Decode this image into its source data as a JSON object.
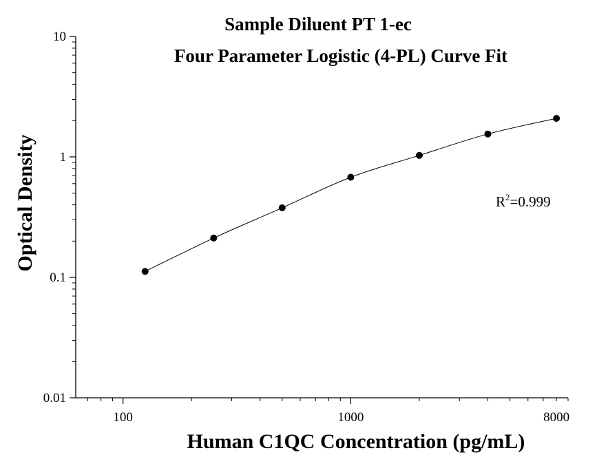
{
  "chart_data": {
    "type": "scatter",
    "title": "Sample Diluent PT 1-ec",
    "subtitle": "Four Parameter Logistic (4-PL) Curve Fit",
    "xlabel": "Human C1QC Concentration (pg/mL)",
    "ylabel": "Optical Density",
    "xscale": "log",
    "yscale": "log",
    "xlim": [
      62,
      9000
    ],
    "ylim": [
      0.01,
      10
    ],
    "xticks": [
      "100",
      "1000",
      "8000"
    ],
    "yticks": [
      "0.01",
      "0.1",
      "1",
      "10"
    ],
    "grid": false,
    "legend": "none",
    "annotation": {
      "base": "R",
      "sup": "2",
      "value": "=0.999"
    },
    "series": [
      {
        "x": [
          125,
          250,
          500,
          1000,
          2000,
          4000,
          8000
        ],
        "y": [
          0.112,
          0.212,
          0.378,
          0.678,
          1.03,
          1.55,
          2.09
        ]
      }
    ],
    "fit": "4PL curve"
  }
}
